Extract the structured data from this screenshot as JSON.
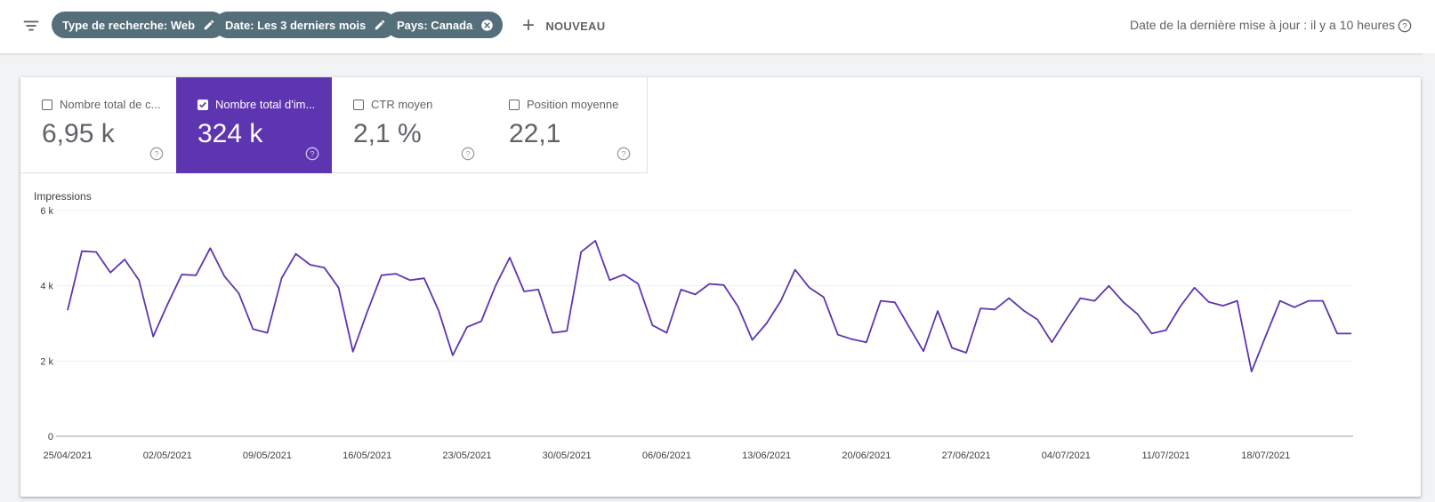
{
  "topbar": {
    "filters": [
      {
        "label": "Type de recherche: Web",
        "action": "edit"
      },
      {
        "label": "Date: Les 3 derniers mois",
        "action": "edit"
      },
      {
        "label": "Pays: Canada",
        "action": "remove"
      }
    ],
    "new_label": "NOUVEAU",
    "last_update": "Date de la dernière mise à jour : il y a 10 heures"
  },
  "metrics": [
    {
      "label": "Nombre total de c...",
      "value": "6,95 k",
      "checked": false
    },
    {
      "label": "Nombre total d'im...",
      "value": "324 k",
      "checked": true
    },
    {
      "label": "CTR moyen",
      "value": "2,1 %",
      "checked": false
    },
    {
      "label": "Position moyenne",
      "value": "22,1",
      "checked": false
    }
  ],
  "colors": {
    "accent": "#5e35b1",
    "chip": "#546e7a",
    "line": "#5e35b1"
  },
  "chart_data": {
    "type": "line",
    "ylabel": "Impressions",
    "ylim": [
      0,
      6000
    ],
    "yticks": [
      0,
      2000,
      4000,
      6000
    ],
    "ytick_labels": [
      "0",
      "2 k",
      "4 k",
      "6 k"
    ],
    "x_tick_labels": [
      "25/04/2021",
      "02/05/2021",
      "09/05/2021",
      "16/05/2021",
      "23/05/2021",
      "30/05/2021",
      "06/06/2021",
      "13/06/2021",
      "20/06/2021",
      "27/06/2021",
      "04/07/2021",
      "11/07/2021",
      "18/07/2021"
    ],
    "grid": true,
    "series": [
      {
        "values": [
          3350,
          4920,
          4900,
          4350,
          4700,
          4150,
          2650,
          3500,
          4300,
          4280,
          5000,
          4250,
          3800,
          2850,
          2750,
          4200,
          4850,
          4560,
          4480,
          3950,
          2250,
          3300,
          4280,
          4320,
          4150,
          4200,
          3350,
          2150,
          2900,
          3060,
          4000,
          4750,
          3850,
          3900,
          2750,
          2800,
          4900,
          5200,
          4150,
          4300,
          4050,
          2950,
          2750,
          3900,
          3770,
          4050,
          4020,
          3450,
          2560,
          3000,
          3600,
          4430,
          3950,
          3700,
          2700,
          2580,
          2500,
          3600,
          3560,
          2900,
          2260,
          3330,
          2350,
          2220,
          3400,
          3370,
          3670,
          3350,
          3100,
          2500,
          3100,
          3670,
          3600,
          4000,
          3570,
          3250,
          2730,
          2820,
          3450,
          3950,
          3570,
          3470,
          3600,
          1720,
          2670,
          3600,
          3430,
          3600,
          3600,
          2730,
          2730
        ]
      }
    ]
  }
}
